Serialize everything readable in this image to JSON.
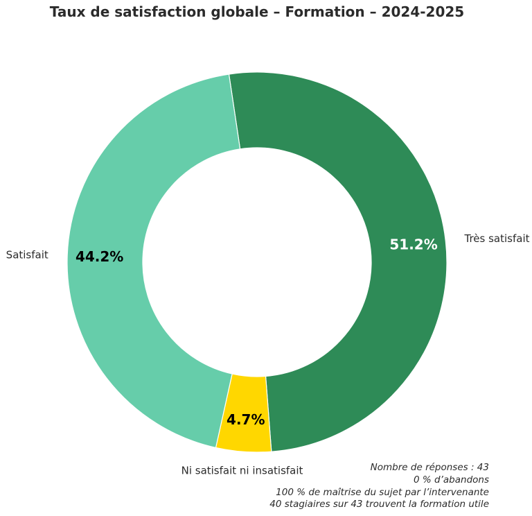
{
  "chart_data": {
    "type": "pie",
    "variant": "donut",
    "title": "Taux de satisfaction globale – Formation – 2024-2025",
    "slices": [
      {
        "label": "Très satisfait",
        "value": 51.2,
        "value_label": "51.2%",
        "color": "#2e8b57",
        "text_color": "#ffffff"
      },
      {
        "label": "Ni satisfait ni insatisfait",
        "value": 4.7,
        "value_label": "4.7%",
        "color": "#ffd700",
        "text_color": "#000000"
      },
      {
        "label": "Satisfait",
        "value": 44.2,
        "value_label": "44.2%",
        "color": "#66cdaa",
        "text_color": "#000000"
      }
    ]
  },
  "notes": [
    "Nombre de réponses : 43",
    "0 % d’abandons",
    "100 % de maîtrise du sujet par l’intervenante",
    "40 stagiaires sur 43 trouvent la formation utile"
  ]
}
